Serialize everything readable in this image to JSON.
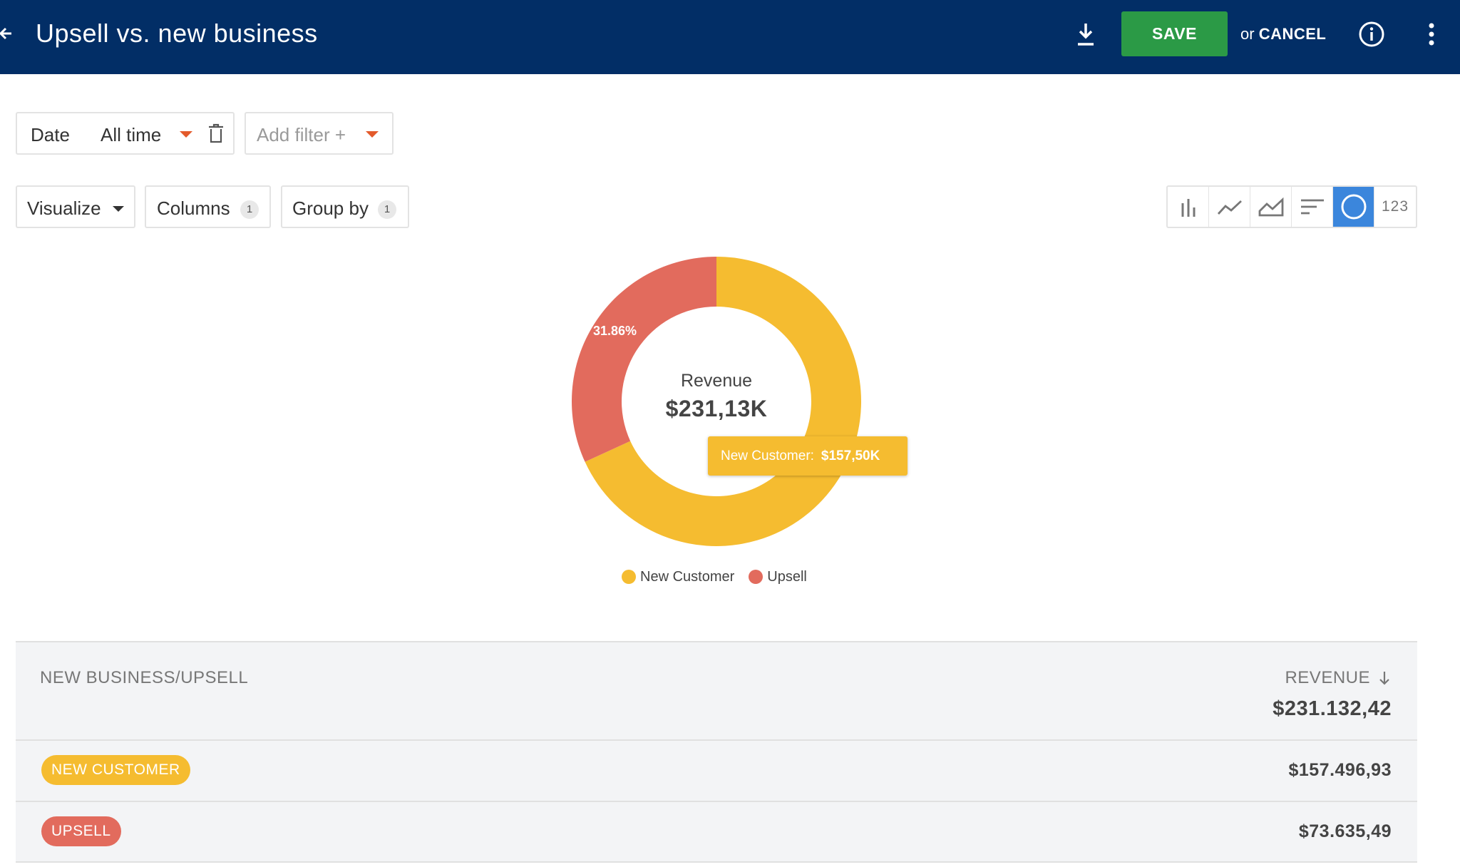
{
  "header": {
    "title": "Upsell vs. new business",
    "save_label": "SAVE",
    "or_label": "or",
    "cancel_label": "CANCEL",
    "background": "#022e66"
  },
  "filters": {
    "date_label": "Date",
    "date_value": "All time",
    "add_filter_label": "Add filter +"
  },
  "controls": {
    "visualize_label": "Visualize",
    "columns_label": "Columns",
    "columns_count": "1",
    "group_by_label": "Group by",
    "group_by_count": "1",
    "chart_types": [
      {
        "name": "bar-chart-icon",
        "active": false
      },
      {
        "name": "line-chart-icon",
        "active": false
      },
      {
        "name": "area-chart-icon",
        "active": false
      },
      {
        "name": "horizontal-bar-icon",
        "active": false
      },
      {
        "name": "donut-chart-icon",
        "active": true
      },
      {
        "name": "number-icon",
        "label": "123",
        "active": false
      }
    ]
  },
  "chart_data": {
    "type": "pie",
    "style": "donut",
    "center_label": "Revenue",
    "center_value": "$231,13K",
    "categories": [
      "New Customer",
      "Upsell"
    ],
    "values": [
      157.5,
      73.64
    ],
    "unit": "$K",
    "colors": [
      "#f5bc30",
      "#e26b5d"
    ],
    "slice_labels": [
      "",
      "31.86%"
    ],
    "tooltip": {
      "label": "New Customer:",
      "value": "$157,50K"
    },
    "legend": "bottom-center"
  },
  "table": {
    "col_left": "NEW BUSINESS/UPSELL",
    "col_right": "REVENUE",
    "total": "$231.132,42",
    "rows": [
      {
        "label": "NEW CUSTOMER",
        "value": "$157.496,93",
        "color": "#f5bc30"
      },
      {
        "label": "UPSELL",
        "value": "$73.635,49",
        "color": "#e26b5d"
      }
    ]
  }
}
